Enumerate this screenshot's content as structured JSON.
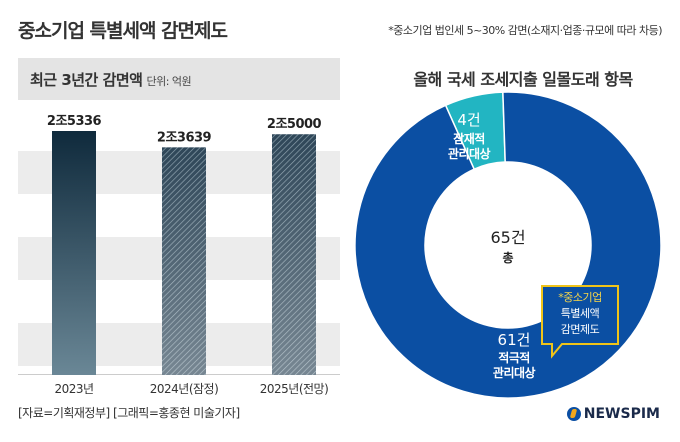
{
  "title": "중소기업 특별세액 감면제도",
  "note": "*중소기업 법인세 5~30% 감면(소재지·업종·규모에 따라 차등)",
  "footer": "[자료=기획재정부] [그래픽=홍종현 미술기자]",
  "logo": "NEWSPIM",
  "chart_data": [
    {
      "type": "bar",
      "title": "최근 3년간 감면액",
      "unit": "단위: 억원",
      "categories": [
        "2023년",
        "2024년(잠정)",
        "2025년(전망)"
      ],
      "values": [
        25336,
        23639,
        25000
      ],
      "value_labels": [
        "2조5336",
        "2조3639",
        "2조5000"
      ],
      "ylim": [
        0,
        26000
      ]
    },
    {
      "type": "pie",
      "title": "올해 국세 조세지출 일몰도래 항목",
      "center_value": "65건",
      "center_label": "총",
      "slices": [
        {
          "value": 61,
          "value_label": "61건",
          "label_lines": [
            "적극적",
            "관리대상"
          ],
          "color": "#0b4fa3"
        },
        {
          "value": 4,
          "value_label": "4건",
          "label_lines": [
            "잠재적",
            "관리대상"
          ],
          "color": "#22b5c2"
        }
      ],
      "callout_lines": [
        "*중소기업",
        "특별세액",
        "감면제도"
      ]
    }
  ]
}
